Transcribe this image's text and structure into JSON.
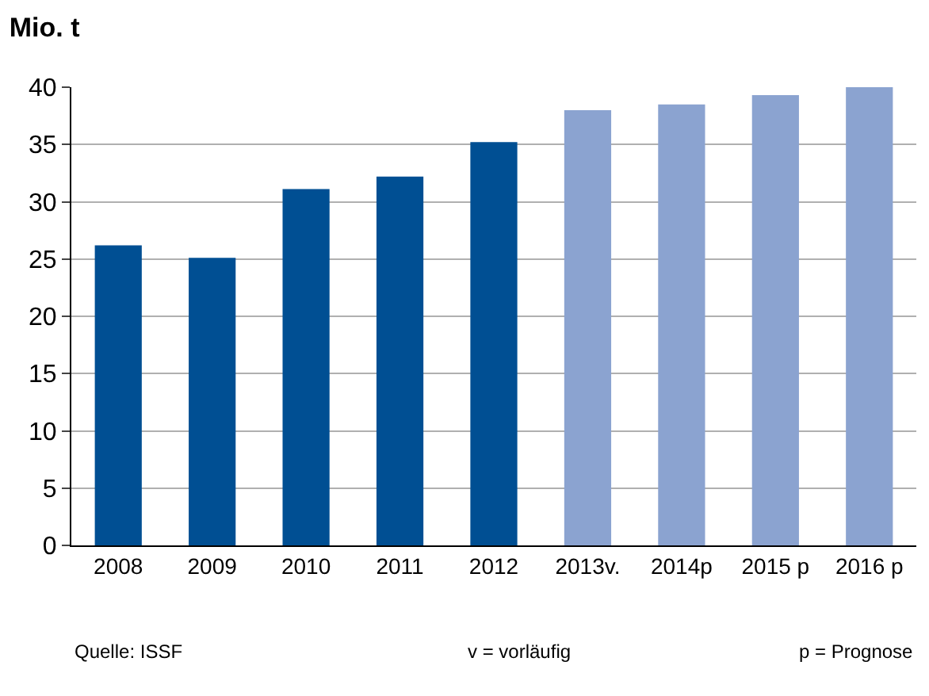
{
  "chart_data": {
    "type": "bar",
    "title": "Mio. t",
    "categories": [
      "2008",
      "2009",
      "2010",
      "2011",
      "2012",
      "2013v.",
      "2014p",
      "2015 p",
      "2016 p"
    ],
    "values": [
      26.2,
      25.1,
      31.1,
      32.2,
      35.2,
      38.0,
      38.5,
      39.3,
      40.0
    ],
    "colors": [
      "#004f93",
      "#004f93",
      "#004f93",
      "#004f93",
      "#004f93",
      "#8ba3d0",
      "#8ba3d0",
      "#8ba3d0",
      "#8ba3d0"
    ],
    "ylim": [
      0,
      40
    ],
    "yticks": [
      0,
      5,
      10,
      15,
      20,
      25,
      30,
      35,
      40
    ],
    "grid": "y",
    "annotations": [
      "Quelle: ISSF",
      "v = vorläufig",
      "p = Prognose"
    ]
  }
}
